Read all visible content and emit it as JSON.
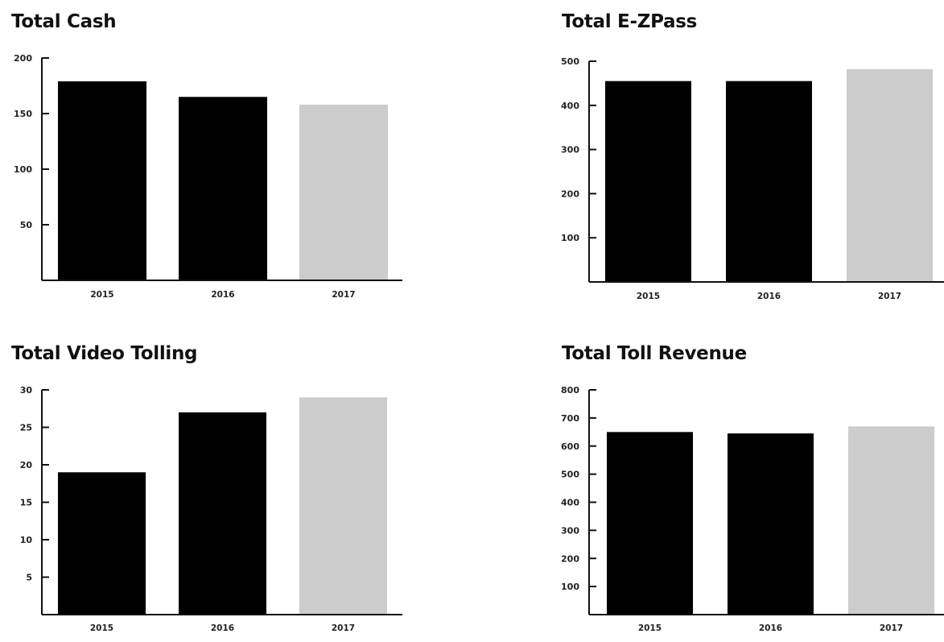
{
  "chart_data": [
    {
      "type": "bar",
      "title": "Total Cash",
      "categories": [
        "2015",
        "2016",
        "2017"
      ],
      "values": [
        179,
        165,
        158
      ],
      "colors": [
        "#000000",
        "#000000",
        "#cccccc"
      ],
      "ylim": [
        0,
        200
      ],
      "yticks": [
        50,
        100,
        150,
        200
      ],
      "xlabel": "",
      "ylabel": "",
      "grid": false
    },
    {
      "type": "bar",
      "title": "Total E-ZPass",
      "categories": [
        "2015",
        "2016",
        "2017"
      ],
      "values": [
        455,
        455,
        482
      ],
      "colors": [
        "#000000",
        "#000000",
        "#cccccc"
      ],
      "ylim": [
        0,
        500
      ],
      "yticks": [
        100,
        200,
        300,
        400,
        500
      ],
      "xlabel": "",
      "ylabel": "",
      "grid": false
    },
    {
      "type": "bar",
      "title": "Total Video Tolling",
      "categories": [
        "2015",
        "2016",
        "2017"
      ],
      "values": [
        19,
        27,
        29
      ],
      "colors": [
        "#000000",
        "#000000",
        "#cccccc"
      ],
      "ylim": [
        0,
        30
      ],
      "yticks": [
        5,
        10,
        15,
        20,
        25,
        30
      ],
      "xlabel": "",
      "ylabel": "",
      "grid": false
    },
    {
      "type": "bar",
      "title": "Total Toll Revenue",
      "categories": [
        "2015",
        "2016",
        "2017"
      ],
      "values": [
        650,
        645,
        670
      ],
      "colors": [
        "#000000",
        "#000000",
        "#cccccc"
      ],
      "ylim": [
        0,
        800
      ],
      "yticks": [
        100,
        200,
        300,
        400,
        500,
        600,
        700,
        800
      ],
      "xlabel": "",
      "ylabel": "",
      "grid": false
    }
  ]
}
